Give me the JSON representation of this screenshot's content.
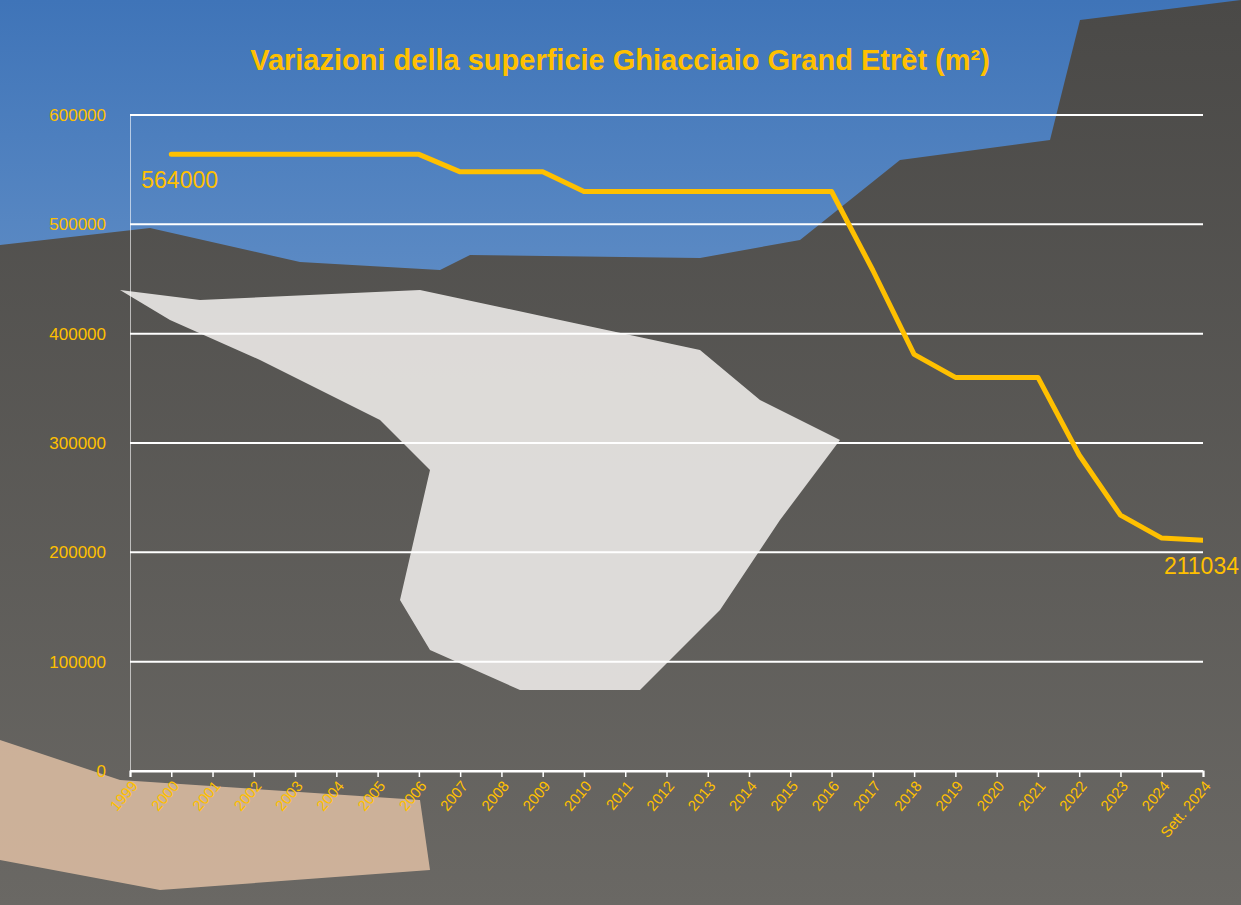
{
  "chart_data": {
    "type": "line",
    "title": "Variazioni della superficie Ghiacciaio Grand Etrèt (m²)",
    "categories": [
      "1999",
      "2000",
      "2001",
      "2002",
      "2003",
      "2004",
      "2005",
      "2006",
      "2007",
      "2008",
      "2009",
      "2010",
      "2011",
      "2012",
      "2013",
      "2014",
      "2015",
      "2016",
      "2017",
      "2018",
      "2019",
      "2020",
      "2021",
      "2022",
      "2023",
      "2024",
      "Sett. 2024"
    ],
    "values": [
      null,
      564000,
      564000,
      564000,
      564000,
      564000,
      564000,
      564000,
      548000,
      548000,
      548000,
      530000,
      530000,
      530000,
      530000,
      530000,
      530000,
      530000,
      458000,
      381000,
      360000,
      360000,
      360000,
      289000,
      234000,
      213000,
      211034
    ],
    "value_labels": [
      null,
      "564000",
      null,
      null,
      null,
      null,
      null,
      null,
      null,
      null,
      null,
      null,
      null,
      null,
      null,
      null,
      null,
      null,
      null,
      null,
      null,
      null,
      null,
      null,
      null,
      null,
      "211034"
    ],
    "data_labels": true,
    "color": "#FFC000",
    "ylim": [
      0,
      600000
    ],
    "yticks": [
      0,
      100000,
      200000,
      300000,
      400000,
      500000,
      600000
    ],
    "grid": true
  }
}
